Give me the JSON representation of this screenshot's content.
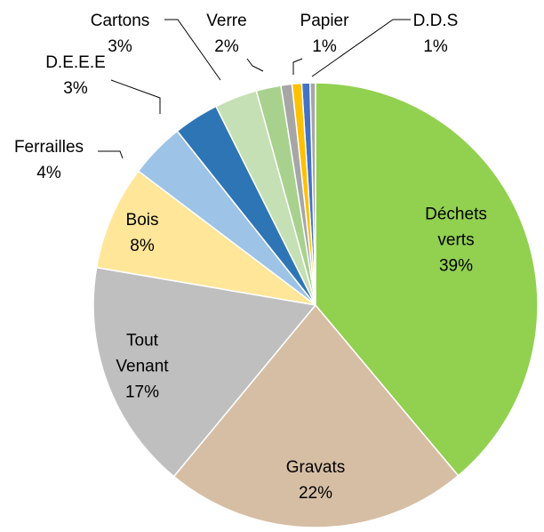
{
  "chart_data": {
    "type": "pie",
    "categories": [
      "Déchets verts",
      "Gravats",
      "Tout Venant",
      "Bois",
      "Ferrailles",
      "D.E.E.E",
      "Cartons",
      "Verre",
      null,
      "Papier",
      "D.D.S",
      null
    ],
    "values": [
      38.9,
      22.1,
      16.7,
      7.6,
      4.0,
      3.3,
      3.1,
      1.8,
      0.8,
      0.7,
      0.6,
      0.4
    ],
    "value_labels": [
      "39%",
      "22%",
      "17%",
      "8%",
      "4%",
      "3%",
      "3%",
      "2%",
      null,
      "1%",
      "1%",
      null
    ],
    "colors": [
      "#92d050",
      "#d6bea5",
      "#bfbfbf",
      "#ffe699",
      "#9dc3e6",
      "#2e75b6",
      "#c5e0b4",
      "#a9d18e",
      "#a6a6a6",
      "#ffc000",
      "#4472c4",
      "#a5a5a5"
    ]
  }
}
